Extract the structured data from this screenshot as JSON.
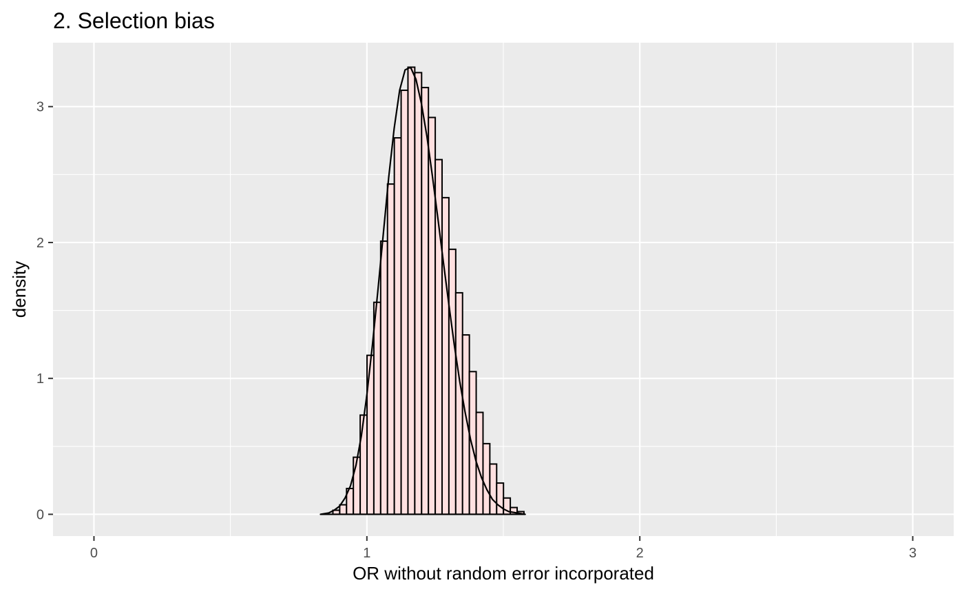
{
  "chart_data": {
    "type": "bar",
    "subtype": "histogram-with-density",
    "title": "2. Selection bias",
    "xlabel": "OR without random error incorporated",
    "ylabel": "density",
    "xlim": [
      -0.15,
      3.15
    ],
    "ylim": [
      -0.16,
      3.47
    ],
    "x_ticks": [
      0,
      1,
      2,
      3
    ],
    "y_ticks": [
      0,
      1,
      2,
      3
    ],
    "grid": true,
    "bin_width": 0.025,
    "bins": [
      {
        "x": 0.888,
        "density": 0.03
      },
      {
        "x": 0.913,
        "density": 0.07
      },
      {
        "x": 0.938,
        "density": 0.19
      },
      {
        "x": 0.963,
        "density": 0.42
      },
      {
        "x": 0.988,
        "density": 0.73
      },
      {
        "x": 1.013,
        "density": 1.17
      },
      {
        "x": 1.038,
        "density": 1.56
      },
      {
        "x": 1.063,
        "density": 2.01
      },
      {
        "x": 1.088,
        "density": 2.43
      },
      {
        "x": 1.113,
        "density": 2.77
      },
      {
        "x": 1.138,
        "density": 3.12
      },
      {
        "x": 1.163,
        "density": 3.29
      },
      {
        "x": 1.188,
        "density": 3.25
      },
      {
        "x": 1.213,
        "density": 3.14
      },
      {
        "x": 1.238,
        "density": 2.92
      },
      {
        "x": 1.263,
        "density": 2.61
      },
      {
        "x": 1.288,
        "density": 2.33
      },
      {
        "x": 1.313,
        "density": 1.95
      },
      {
        "x": 1.338,
        "density": 1.63
      },
      {
        "x": 1.363,
        "density": 1.32
      },
      {
        "x": 1.388,
        "density": 1.05
      },
      {
        "x": 1.413,
        "density": 0.75
      },
      {
        "x": 1.438,
        "density": 0.52
      },
      {
        "x": 1.463,
        "density": 0.37
      },
      {
        "x": 1.488,
        "density": 0.23
      },
      {
        "x": 1.513,
        "density": 0.12
      },
      {
        "x": 1.538,
        "density": 0.05
      },
      {
        "x": 1.563,
        "density": 0.02
      }
    ],
    "density_curve": [
      {
        "x": 0.83,
        "y": 0.0
      },
      {
        "x": 0.86,
        "y": 0.01
      },
      {
        "x": 0.88,
        "y": 0.03
      },
      {
        "x": 0.9,
        "y": 0.06
      },
      {
        "x": 0.92,
        "y": 0.12
      },
      {
        "x": 0.94,
        "y": 0.21
      },
      {
        "x": 0.96,
        "y": 0.36
      },
      {
        "x": 0.98,
        "y": 0.58
      },
      {
        "x": 1.0,
        "y": 0.88
      },
      {
        "x": 1.02,
        "y": 1.24
      },
      {
        "x": 1.04,
        "y": 1.64
      },
      {
        "x": 1.06,
        "y": 2.06
      },
      {
        "x": 1.08,
        "y": 2.48
      },
      {
        "x": 1.1,
        "y": 2.84
      },
      {
        "x": 1.12,
        "y": 3.12
      },
      {
        "x": 1.14,
        "y": 3.27
      },
      {
        "x": 1.16,
        "y": 3.29
      },
      {
        "x": 1.18,
        "y": 3.2
      },
      {
        "x": 1.2,
        "y": 3.02
      },
      {
        "x": 1.22,
        "y": 2.78
      },
      {
        "x": 1.24,
        "y": 2.49
      },
      {
        "x": 1.26,
        "y": 2.18
      },
      {
        "x": 1.28,
        "y": 1.86
      },
      {
        "x": 1.3,
        "y": 1.55
      },
      {
        "x": 1.32,
        "y": 1.25
      },
      {
        "x": 1.34,
        "y": 0.98
      },
      {
        "x": 1.36,
        "y": 0.75
      },
      {
        "x": 1.38,
        "y": 0.55
      },
      {
        "x": 1.4,
        "y": 0.39
      },
      {
        "x": 1.42,
        "y": 0.27
      },
      {
        "x": 1.44,
        "y": 0.18
      },
      {
        "x": 1.46,
        "y": 0.11
      },
      {
        "x": 1.48,
        "y": 0.07
      },
      {
        "x": 1.5,
        "y": 0.04
      },
      {
        "x": 1.52,
        "y": 0.02
      },
      {
        "x": 1.55,
        "y": 0.01
      },
      {
        "x": 1.58,
        "y": 0.0
      }
    ],
    "colors": {
      "panel_background": "#ebebeb",
      "grid": "#ffffff",
      "bar_fill": "#ffe0e0",
      "bar_stroke": "#000000",
      "curve": "#000000"
    }
  }
}
